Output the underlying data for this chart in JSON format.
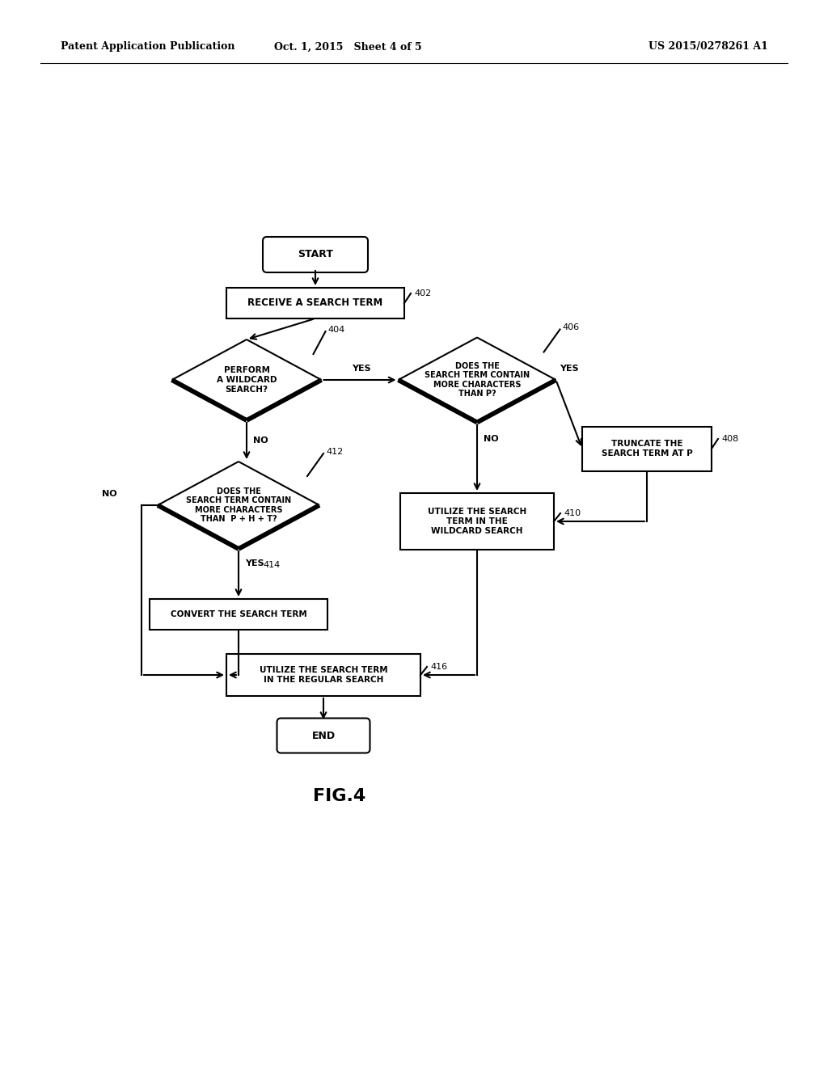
{
  "bg_color": "#ffffff",
  "line_color": "#000000",
  "text_color": "#000000",
  "header_left": "Patent Application Publication",
  "header_center": "Oct. 1, 2015   Sheet 4 of 5",
  "header_right": "US 2015/0278261 A1",
  "fig_label": "FIG.4",
  "font_size_header": 9,
  "font_size_node": 7.5,
  "font_size_ref": 8,
  "font_size_yes_no": 8,
  "font_size_figlabel": 16
}
